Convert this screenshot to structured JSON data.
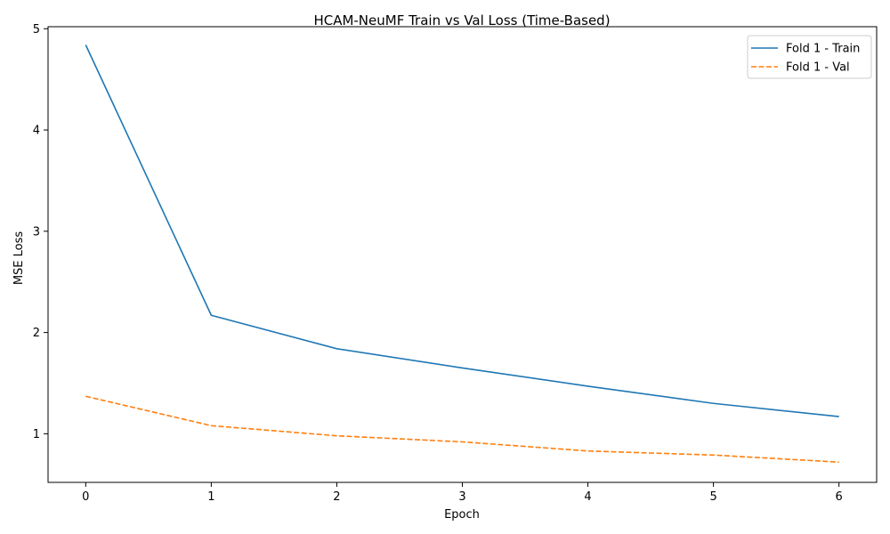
{
  "chart_data": {
    "type": "line",
    "title": "HCAM-NeuMF Train vs Val Loss (Time-Based)",
    "xlabel": "Epoch",
    "ylabel": "MSE Loss",
    "x": [
      0,
      1,
      2,
      3,
      4,
      5,
      6
    ],
    "xlim": [
      -0.3,
      6.3
    ],
    "ylim": [
      0.52,
      5.02
    ],
    "xticks": [
      0,
      1,
      2,
      3,
      4,
      5,
      6
    ],
    "yticks": [
      1,
      2,
      3,
      4,
      5
    ],
    "grid": false,
    "legend_position": "upper right",
    "series": [
      {
        "name": "Fold 1 - Train",
        "values": [
          4.84,
          2.17,
          1.84,
          1.65,
          1.47,
          1.3,
          1.17
        ],
        "color": "#1f77b4",
        "style": "solid"
      },
      {
        "name": "Fold 1 - Val",
        "values": [
          1.37,
          1.08,
          0.98,
          0.92,
          0.83,
          0.79,
          0.72
        ],
        "color": "#ff7f0e",
        "style": "dashed"
      }
    ]
  }
}
